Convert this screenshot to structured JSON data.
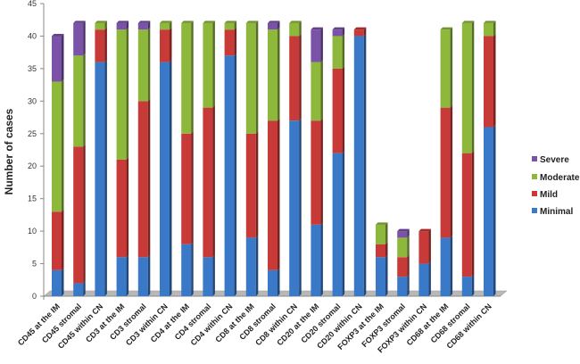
{
  "chart_data": {
    "type": "bar",
    "stacked": true,
    "title": "",
    "xlabel": "",
    "ylabel": "Number of cases",
    "ylim": [
      0,
      45
    ],
    "yticks": [
      0,
      5,
      10,
      15,
      20,
      25,
      30,
      35,
      40,
      45
    ],
    "legend_position": "right",
    "categories": [
      "CD45 at the IM",
      "CD45 stromal",
      "CD45 within CN",
      "CD3 at the IM",
      "CD3 stromal",
      "CD3 within CN",
      "CD4 at the IM",
      "CD4 stromal",
      "CD4 within CN",
      "CD8 at the IM",
      "CD8 stromal",
      "CD8 within CN",
      "CD20 at the IM",
      "CD20 stromal",
      "CD20 within CN",
      "FOXP3 at the IM",
      "FOXP3 stromal",
      "FOXP3 within CN",
      "CD68 at the IM",
      "CD68 stromal",
      "CD68 within CN"
    ],
    "series": [
      {
        "name": "Minimal",
        "color": "#3a78c8",
        "values": [
          4,
          2,
          36,
          6,
          6,
          36,
          8,
          6,
          37,
          9,
          4,
          27,
          11,
          22,
          40,
          6,
          3,
          5,
          9,
          3,
          26
        ]
      },
      {
        "name": "Mild",
        "color": "#c83a38",
        "values": [
          9,
          21,
          5,
          15,
          24,
          5,
          17,
          23,
          4,
          16,
          23,
          13,
          16,
          13,
          1,
          2,
          3,
          5,
          20,
          19,
          14
        ]
      },
      {
        "name": "Moderate",
        "color": "#8db83c",
        "values": [
          20,
          14,
          1,
          20,
          11,
          1,
          17,
          13,
          1,
          17,
          14,
          2,
          9,
          5,
          0,
          3,
          3,
          0,
          12,
          20,
          2
        ]
      },
      {
        "name": "Severe",
        "color": "#7a52a8",
        "values": [
          7,
          5,
          0,
          1,
          1,
          0,
          0,
          0,
          0,
          0,
          1,
          0,
          5,
          1,
          0,
          0,
          1,
          0,
          0,
          0,
          0
        ]
      }
    ],
    "legend_order": [
      "Severe",
      "Moderate",
      "Mild",
      "Minimal"
    ]
  }
}
